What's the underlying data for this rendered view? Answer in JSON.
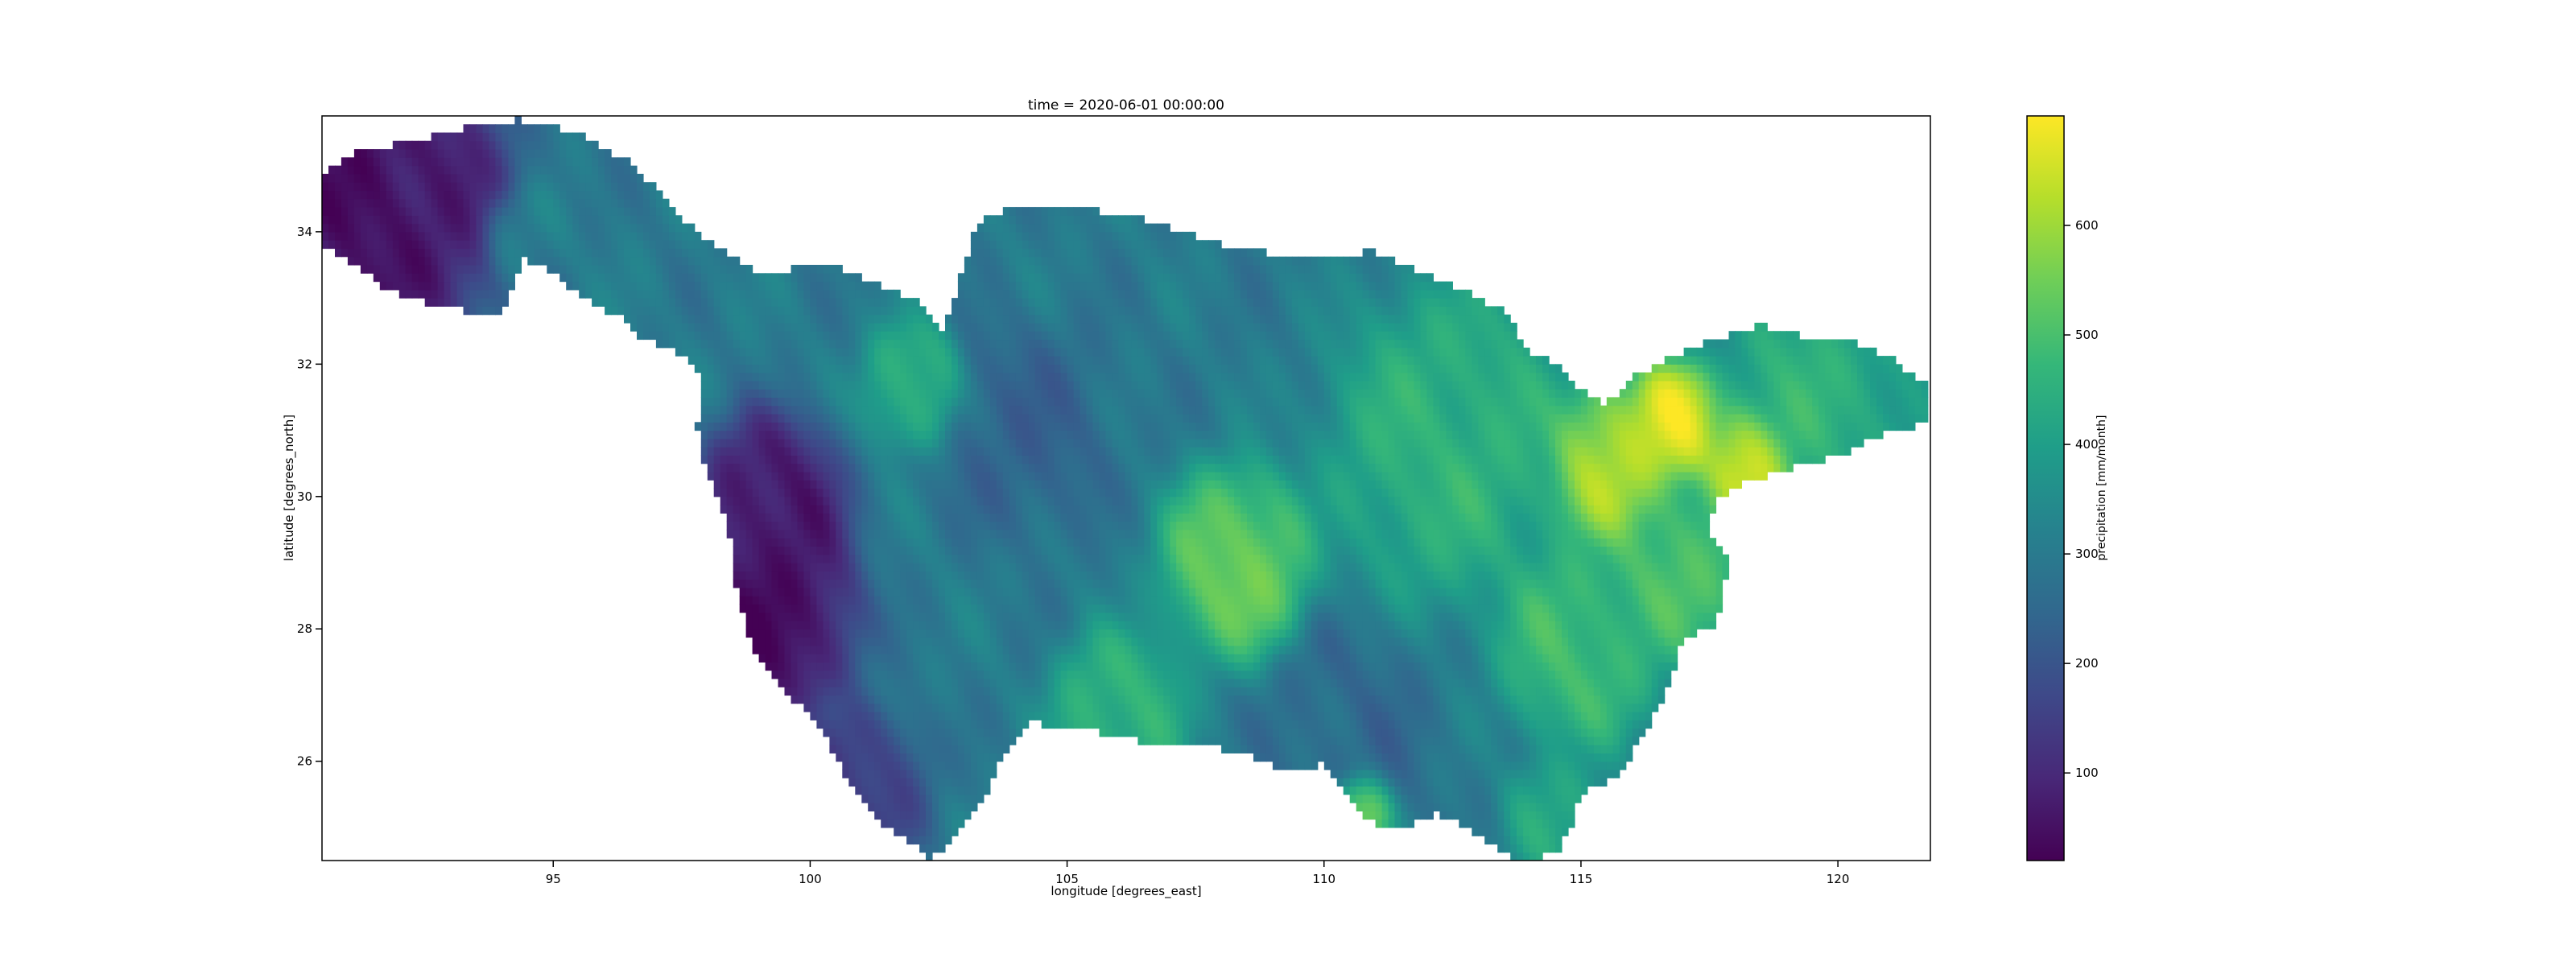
{
  "chart_data": {
    "type": "heatmap",
    "title": "time = 2020-06-01 00:00:00",
    "xlabel": "longitude [degrees_east]",
    "ylabel": "latitude [degrees_north]",
    "xlim": [
      90.5,
      121.8
    ],
    "ylim": [
      24.5,
      35.75
    ],
    "x_ticks": [
      95,
      100,
      105,
      110,
      115,
      120
    ],
    "y_ticks": [
      26,
      28,
      30,
      32,
      34
    ],
    "grid": false,
    "colorbar": {
      "label": "precipitation [mm/month]",
      "colormap": "viridis",
      "vmin": 20,
      "vmax": 700,
      "ticks": [
        100,
        200,
        300,
        400,
        500,
        600
      ],
      "stops": [
        "#440154",
        "#482878",
        "#3e4989",
        "#31688e",
        "#26828e",
        "#1f9e89",
        "#35b779",
        "#6ece58",
        "#b5de2b",
        "#fde725"
      ]
    },
    "region": {
      "boundary": [
        [
          90.5,
          34.9
        ],
        [
          91.2,
          35.2
        ],
        [
          92.5,
          35.4
        ],
        [
          93.5,
          35.6
        ],
        [
          94.3,
          35.7
        ],
        [
          95.5,
          35.5
        ],
        [
          96.6,
          35.0
        ],
        [
          97.5,
          34.2
        ],
        [
          98.0,
          33.9
        ],
        [
          99.0,
          33.4
        ],
        [
          100.5,
          33.5
        ],
        [
          102.0,
          33.0
        ],
        [
          102.6,
          32.5
        ],
        [
          103.0,
          33.5
        ],
        [
          103.2,
          34.0
        ],
        [
          103.5,
          34.3
        ],
        [
          105.0,
          34.4
        ],
        [
          106.5,
          34.2
        ],
        [
          108.0,
          33.8
        ],
        [
          109.5,
          33.6
        ],
        [
          111.0,
          33.7
        ],
        [
          112.5,
          33.2
        ],
        [
          113.5,
          32.8
        ],
        [
          114.0,
          32.2
        ],
        [
          114.5,
          32.0
        ],
        [
          115.0,
          31.6
        ],
        [
          115.5,
          31.4
        ],
        [
          116.0,
          31.8
        ],
        [
          117.0,
          32.2
        ],
        [
          118.5,
          32.6
        ],
        [
          119.5,
          32.4
        ],
        [
          120.5,
          32.3
        ],
        [
          121.0,
          32.1
        ],
        [
          121.7,
          31.7
        ],
        [
          121.8,
          31.1
        ],
        [
          121.0,
          31.0
        ],
        [
          120.0,
          30.6
        ],
        [
          119.0,
          30.4
        ],
        [
          118.2,
          30.2
        ],
        [
          117.6,
          29.9
        ],
        [
          117.5,
          29.5
        ],
        [
          117.9,
          29.0
        ],
        [
          117.6,
          28.0
        ],
        [
          117.0,
          27.9
        ],
        [
          116.8,
          27.4
        ],
        [
          116.5,
          26.8
        ],
        [
          116.0,
          26.1
        ],
        [
          115.8,
          25.8
        ],
        [
          115.0,
          25.5
        ],
        [
          114.8,
          25.0
        ],
        [
          114.5,
          24.6
        ],
        [
          113.8,
          24.5
        ],
        [
          113.0,
          24.9
        ],
        [
          112.2,
          25.2
        ],
        [
          111.5,
          25.0
        ],
        [
          110.8,
          25.1
        ],
        [
          110.3,
          25.6
        ],
        [
          110.0,
          26.0
        ],
        [
          109.5,
          25.8
        ],
        [
          108.5,
          26.1
        ],
        [
          107.5,
          26.3
        ],
        [
          106.8,
          26.2
        ],
        [
          106.0,
          26.4
        ],
        [
          105.0,
          26.5
        ],
        [
          104.3,
          26.6
        ],
        [
          103.7,
          26.0
        ],
        [
          103.3,
          25.3
        ],
        [
          102.8,
          24.8
        ],
        [
          102.3,
          24.55
        ],
        [
          101.8,
          24.9
        ],
        [
          101.4,
          25.0
        ],
        [
          100.8,
          25.6
        ],
        [
          100.2,
          26.5
        ],
        [
          99.6,
          27.0
        ],
        [
          99.0,
          27.5
        ],
        [
          98.6,
          28.4
        ],
        [
          98.5,
          29.0
        ],
        [
          98.4,
          29.6
        ],
        [
          98.0,
          30.3
        ],
        [
          97.8,
          31.0
        ],
        [
          97.9,
          31.8
        ],
        [
          97.4,
          32.2
        ],
        [
          96.7,
          32.4
        ],
        [
          96.3,
          32.7
        ],
        [
          95.4,
          33.1
        ],
        [
          94.8,
          33.5
        ],
        [
          94.4,
          33.6
        ],
        [
          94.2,
          33.2
        ],
        [
          94.0,
          32.8
        ],
        [
          93.4,
          32.8
        ],
        [
          92.7,
          32.9
        ],
        [
          91.8,
          33.1
        ],
        [
          91.2,
          33.5
        ],
        [
          90.5,
          33.8
        ]
      ],
      "hotspots": [
        {
          "lon": 91.5,
          "lat": 34.5,
          "value": 30,
          "spread": 1.6
        },
        {
          "lon": 99.3,
          "lat": 28.2,
          "value": 25,
          "spread": 1.0
        },
        {
          "lon": 99.2,
          "lat": 29.8,
          "value": 40,
          "spread": 0.9
        },
        {
          "lon": 94.5,
          "lat": 33.9,
          "value": 320,
          "spread": 0.5
        },
        {
          "lon": 102.0,
          "lat": 31.7,
          "value": 470,
          "spread": 0.6
        },
        {
          "lon": 104.2,
          "lat": 31.0,
          "value": 230,
          "spread": 1.0
        },
        {
          "lon": 108.3,
          "lat": 29.0,
          "value": 560,
          "spread": 0.9
        },
        {
          "lon": 110.5,
          "lat": 26.5,
          "value": 250,
          "spread": 1.0
        },
        {
          "lon": 112.5,
          "lat": 30.8,
          "value": 470,
          "spread": 1.5
        },
        {
          "lon": 115.6,
          "lat": 30.5,
          "value": 640,
          "spread": 0.8
        },
        {
          "lon": 116.8,
          "lat": 31.1,
          "value": 700,
          "spread": 0.6
        },
        {
          "lon": 118.3,
          "lat": 30.5,
          "value": 690,
          "spread": 0.6
        },
        {
          "lon": 119.3,
          "lat": 31.5,
          "value": 470,
          "spread": 1.0
        },
        {
          "lon": 120.5,
          "lat": 31.2,
          "value": 440,
          "spread": 0.8
        },
        {
          "lon": 117.0,
          "lat": 29.0,
          "value": 520,
          "spread": 0.9
        },
        {
          "lon": 115.0,
          "lat": 27.8,
          "value": 500,
          "spread": 1.0
        },
        {
          "lon": 114.5,
          "lat": 25.2,
          "value": 430,
          "spread": 0.6
        },
        {
          "lon": 110.7,
          "lat": 25.3,
          "value": 620,
          "spread": 0.4
        },
        {
          "lon": 106.0,
          "lat": 26.7,
          "value": 480,
          "spread": 0.8
        },
        {
          "lon": 101.0,
          "lat": 25.6,
          "value": 140,
          "spread": 0.8
        }
      ],
      "base_value": 300
    }
  }
}
